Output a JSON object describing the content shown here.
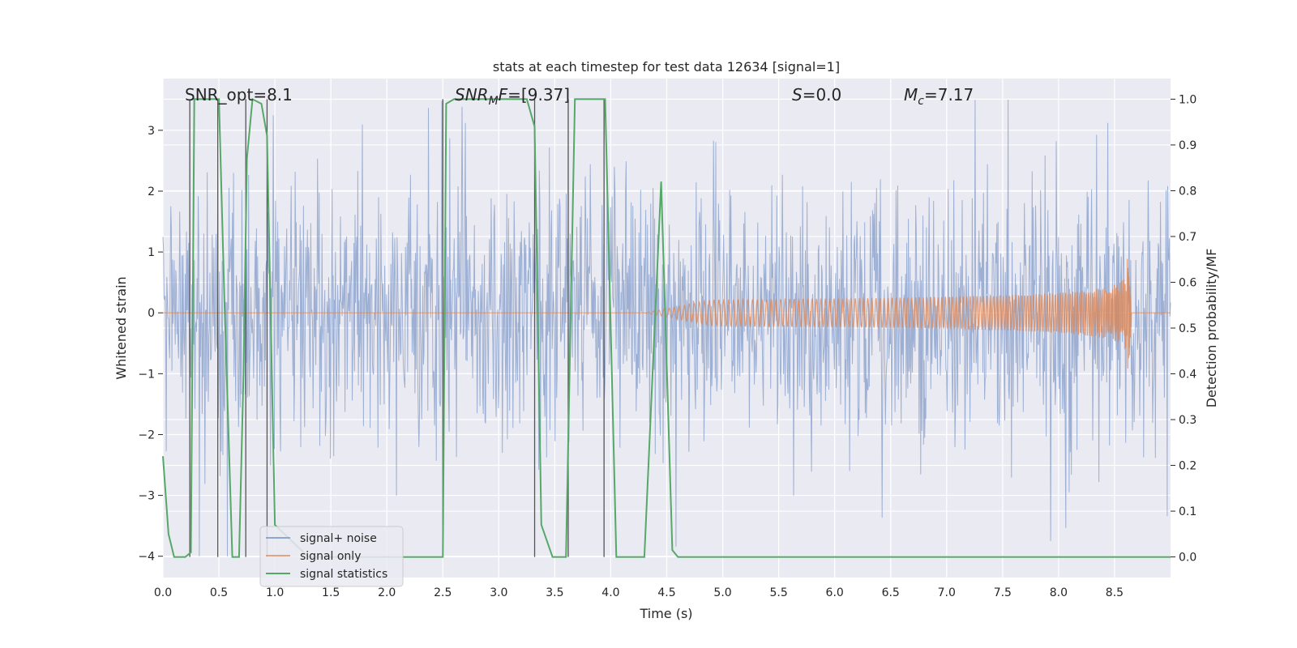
{
  "chart_data": {
    "type": "line",
    "title": "stats at each timestep for test data 12634 [signal=1]",
    "xlabel": "Time (s)",
    "ylabel_left": "Whitened strain",
    "ylabel_right": "Detection probability/MF",
    "xlim": [
      0.0,
      9.0
    ],
    "ylim_left": [
      -4.35,
      3.85
    ],
    "ylim_right": [
      -0.045,
      1.045
    ],
    "x_ticks": [
      "0.0",
      "0.5",
      "1.0",
      "1.5",
      "2.0",
      "2.5",
      "3.0",
      "3.5",
      "4.0",
      "4.5",
      "5.0",
      "5.5",
      "6.0",
      "6.5",
      "7.0",
      "7.5",
      "8.0",
      "8.5"
    ],
    "y_ticks_left": [
      "3",
      "2",
      "1",
      "0",
      "−1",
      "−2",
      "−3",
      "−4"
    ],
    "y_ticks_right": [
      "1.0",
      "0.9",
      "0.8",
      "0.7",
      "0.6",
      "0.5",
      "0.4",
      "0.3",
      "0.2",
      "0.1",
      "0.0"
    ],
    "annotations": {
      "snr_opt": "SNR_opt=8.1",
      "snr_mf_sym": "SNR",
      "snr_mf_sub": "M",
      "snr_mf_sym2": "F",
      "snr_mf_val": "=[9.37]",
      "s_sym": "S",
      "s_val": "=0.0",
      "mc_sym": "M",
      "mc_sub": "c",
      "mc_val": "=7.17"
    },
    "legend": [
      "signal+ noise",
      "signal only",
      "signal statistics"
    ],
    "series": [
      {
        "name": "signal+ noise",
        "axis": "left",
        "color": "#8fa6cf",
        "description_values": "dense whitened noise, mostly within [-2, 2], peaks to about +3.5 / -4",
        "envelope_x": [
          0.0,
          9.0
        ],
        "typical_range": [
          -2.0,
          2.3
        ],
        "peak_range": [
          -4.0,
          3.5
        ]
      },
      {
        "name": "signal only",
        "axis": "left",
        "color": "#dd8452",
        "chirp_start_time": 4.3,
        "merger_time": 8.65,
        "peak_amplitude": 0.8,
        "min_amplitude": -0.9
      },
      {
        "name": "signal statistics",
        "axis": "right",
        "color": "#55a868",
        "x": [
          0.0,
          0.05,
          0.1,
          0.2,
          0.25,
          0.28,
          0.3,
          0.5,
          0.55,
          0.62,
          0.68,
          0.72,
          0.75,
          0.8,
          0.88,
          0.93,
          1.0,
          1.3,
          2.5,
          2.53,
          2.6,
          3.25,
          3.32,
          3.38,
          3.48,
          3.6,
          3.68,
          3.95,
          4.05,
          4.3,
          4.45,
          4.55,
          4.6,
          9.0
        ],
        "y": [
          0.22,
          0.05,
          0.0,
          0.0,
          0.01,
          1.0,
          1.0,
          1.0,
          0.55,
          0.0,
          0.0,
          0.4,
          0.87,
          1.0,
          0.99,
          0.92,
          0.07,
          0.0,
          0.0,
          0.99,
          1.0,
          1.0,
          0.94,
          0.07,
          0.0,
          0.0,
          1.0,
          1.0,
          0.0,
          0.0,
          0.82,
          0.015,
          0.0,
          0.0
        ]
      }
    ],
    "vlines_x": [
      0.24,
      0.49,
      0.74,
      0.93,
      2.5,
      3.32,
      3.62,
      3.94
    ]
  }
}
